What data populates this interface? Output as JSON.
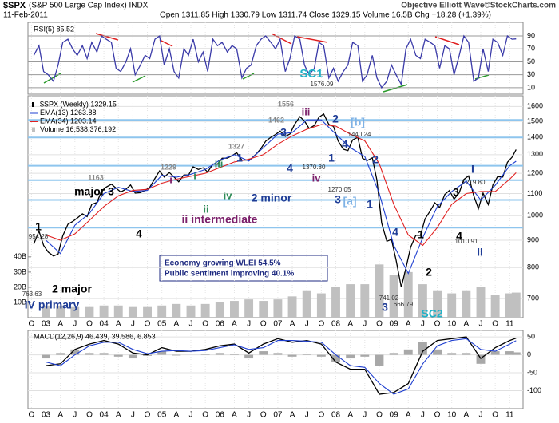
{
  "chart_data": [
    {
      "type": "line",
      "title": "$SPX",
      "subtitle": "(S&P 500 Large Cap Index) INDX",
      "date": "11-Feb-2011",
      "quote": "Open 1311.85 High 1330.79 Low 1311.74 Close 1329.15 Volume 16.5B Chg +18.28 (+1.39%)",
      "credit": "Objective Elliott Wave©StockCharts.com",
      "xlim": [
        2002.69,
        2011.23
      ],
      "xticks": [
        {
          "value": 2002.75,
          "label": "O"
        },
        {
          "value": 2003,
          "label": "03"
        },
        {
          "value": 2003.25,
          "label": "A"
        },
        {
          "value": 2003.5,
          "label": "J"
        },
        {
          "value": 2003.75,
          "label": "O"
        },
        {
          "value": 2004,
          "label": "04"
        },
        {
          "value": 2004.25,
          "label": "A"
        },
        {
          "value": 2004.5,
          "label": "J"
        },
        {
          "value": 2004.75,
          "label": "O"
        },
        {
          "value": 2005,
          "label": "05"
        },
        {
          "value": 2005.25,
          "label": "A"
        },
        {
          "value": 2005.5,
          "label": "J"
        },
        {
          "value": 2005.75,
          "label": "O"
        },
        {
          "value": 2006,
          "label": "06"
        },
        {
          "value": 2006.25,
          "label": "A"
        },
        {
          "value": 2006.5,
          "label": "J"
        },
        {
          "value": 2006.75,
          "label": "O"
        },
        {
          "value": 2007,
          "label": "07"
        },
        {
          "value": 2007.25,
          "label": "A"
        },
        {
          "value": 2007.5,
          "label": "J"
        },
        {
          "value": 2007.75,
          "label": "O"
        },
        {
          "value": 2008,
          "label": "08"
        },
        {
          "value": 2008.25,
          "label": "A"
        },
        {
          "value": 2008.5,
          "label": "J"
        },
        {
          "value": 2008.75,
          "label": "O"
        },
        {
          "value": 2009,
          "label": "09"
        },
        {
          "value": 2009.25,
          "label": "A"
        },
        {
          "value": 2009.5,
          "label": "J"
        },
        {
          "value": 2009.75,
          "label": "O"
        },
        {
          "value": 2010,
          "label": "10"
        },
        {
          "value": 2010.25,
          "label": "A"
        },
        {
          "value": 2010.5,
          "label": "J"
        },
        {
          "value": 2010.75,
          "label": "O"
        },
        {
          "value": 2011,
          "label": "11"
        }
      ],
      "log_y": true,
      "ylim": [
        645,
        1675
      ],
      "yticks": [
        1600,
        1500,
        1400,
        1300,
        1200,
        1100,
        1000,
        900,
        800,
        700
      ],
      "grid": true,
      "y2lim": [
        0,
        146
      ],
      "y2ticks": [
        {
          "value": 40,
          "label": "40B"
        },
        {
          "value": 30,
          "label": "30B"
        },
        {
          "value": 20,
          "label": "20B"
        },
        {
          "value": 10,
          "label": "10B"
        }
      ],
      "levels": [
        1510,
        1400,
        1240,
        1165,
        1070,
        950
      ],
      "level_color": "#8ec5ee",
      "series": [
        {
          "name": "$SPX (Weekly) 1329.15",
          "color": "#000000",
          "x": [
            2002.79,
            2002.88,
            2002.96,
            2003.04,
            2003.13,
            2003.21,
            2003.29,
            2003.38,
            2003.46,
            2003.54,
            2003.63,
            2003.71,
            2003.79,
            2003.88,
            2003.96,
            2004.04,
            2004.13,
            2004.21,
            2004.29,
            2004.38,
            2004.46,
            2004.54,
            2004.63,
            2004.71,
            2004.79,
            2004.88,
            2004.96,
            2005.04,
            2005.13,
            2005.21,
            2005.29,
            2005.38,
            2005.46,
            2005.54,
            2005.63,
            2005.71,
            2005.79,
            2005.88,
            2005.96,
            2006.04,
            2006.13,
            2006.21,
            2006.29,
            2006.38,
            2006.46,
            2006.54,
            2006.63,
            2006.71,
            2006.79,
            2006.88,
            2006.96,
            2007.04,
            2007.13,
            2007.21,
            2007.29,
            2007.38,
            2007.46,
            2007.54,
            2007.63,
            2007.71,
            2007.79,
            2007.88,
            2007.96,
            2008.04,
            2008.13,
            2008.21,
            2008.29,
            2008.38,
            2008.46,
            2008.54,
            2008.63,
            2008.71,
            2008.79,
            2008.88,
            2008.96,
            2009.04,
            2009.13,
            2009.21,
            2009.29,
            2009.38,
            2009.46,
            2009.54,
            2009.63,
            2009.71,
            2009.79,
            2009.88,
            2009.96,
            2010.04,
            2010.13,
            2010.21,
            2010.29,
            2010.38,
            2010.46,
            2010.54,
            2010.63,
            2010.71,
            2010.79,
            2010.88,
            2010.96,
            2011.04,
            2011.11
          ],
          "values": [
            885,
            936,
            880,
            855,
            841,
            848,
            917,
            964,
            975,
            990,
            1008,
            996,
            1050,
            1058,
            1112,
            1131,
            1145,
            1126,
            1107,
            1121,
            1141,
            1102,
            1104,
            1115,
            1130,
            1174,
            1212,
            1181,
            1204,
            1181,
            1157,
            1192,
            1191,
            1234,
            1220,
            1229,
            1207,
            1249,
            1248,
            1280,
            1281,
            1295,
            1311,
            1270,
            1270,
            1277,
            1304,
            1336,
            1378,
            1401,
            1418,
            1438,
            1407,
            1421,
            1482,
            1531,
            1503,
            1455,
            1474,
            1527,
            1549,
            1481,
            1468,
            1379,
            1331,
            1323,
            1386,
            1400,
            1280,
            1267,
            1283,
            1165,
            969,
            896,
            903,
            826,
            735,
            798,
            873,
            919,
            919,
            987,
            1021,
            1057,
            1036,
            1096,
            1115,
            1074,
            1104,
            1169,
            1187,
            1089,
            1031,
            1102,
            1049,
            1141,
            1183,
            1181,
            1258,
            1286,
            1329.15
          ]
        },
        {
          "name": "EMA(13) 1263.88",
          "color": "#1f3fd0",
          "x": [
            2003,
            2003.25,
            2003.5,
            2003.75,
            2004,
            2004.25,
            2004.5,
            2004.75,
            2005,
            2005.25,
            2005.5,
            2005.75,
            2006,
            2006.25,
            2006.5,
            2006.75,
            2007,
            2007.25,
            2007.5,
            2007.75,
            2008,
            2008.25,
            2008.5,
            2008.75,
            2009,
            2009.25,
            2009.5,
            2009.75,
            2010,
            2010.25,
            2010.5,
            2010.75,
            2011,
            2011.11
          ],
          "values": [
            900,
            850,
            960,
            1010,
            1100,
            1130,
            1110,
            1115,
            1190,
            1180,
            1195,
            1220,
            1270,
            1300,
            1265,
            1340,
            1420,
            1430,
            1510,
            1510,
            1420,
            1340,
            1290,
            1100,
            880,
            780,
            910,
            1040,
            1110,
            1160,
            1070,
            1140,
            1240,
            1263.88
          ]
        },
        {
          "name": "EMA(34) 1203.14",
          "color": "#e02020",
          "values": [
            920,
            900,
            925,
            980,
            1040,
            1090,
            1115,
            1120,
            1150,
            1170,
            1185,
            1200,
            1230,
            1260,
            1275,
            1300,
            1360,
            1410,
            1450,
            1480,
            1470,
            1420,
            1380,
            1250,
            1050,
            920,
            880,
            950,
            1050,
            1100,
            1110,
            1110,
            1170,
            1203.14
          ]
        },
        {
          "name": "Volume 16,538,376,192",
          "color": "#c0c0c0",
          "type": "bar",
          "axis": "y2",
          "values": [
            8,
            8,
            7,
            7,
            8,
            8,
            7,
            7,
            8,
            9,
            8,
            9,
            10,
            11,
            12,
            11,
            12,
            14,
            18,
            16,
            20,
            22,
            22,
            35,
            28,
            30,
            22,
            18,
            16,
            18,
            20,
            15,
            16,
            16.5
          ]
        }
      ],
      "annotations": [
        "SC1",
        "1576.09",
        "1556",
        "iii",
        "1462",
        "2",
        "[b]",
        "3",
        "1440.24",
        "4",
        "1327",
        "1",
        "iii",
        "1",
        "2",
        "1229",
        "1370.80",
        "4",
        "i",
        "1163",
        "i",
        "iv",
        "1219.80",
        "I",
        "1270.05",
        "major 3",
        "3",
        "iv",
        "2 minor",
        "3",
        "[a]",
        "1",
        "ii",
        "ii intermediate",
        "1",
        "4",
        "4",
        "1",
        "4",
        "954.28",
        "1010.91",
        "II",
        "2",
        "2 major",
        "763.63",
        "741.02",
        "666.79",
        "IV primary",
        "3",
        "SC2"
      ],
      "notes": [
        "Economy growing WLEI 54.5%",
        "Public sentiment improving 40.1%"
      ]
    },
    {
      "type": "line",
      "ylim": [
        0,
        111
      ],
      "yticks": [
        90,
        70,
        50,
        30,
        10
      ],
      "grid": true,
      "series": [
        {
          "name": "RSI(5) 85.52",
          "color": "#3a3aa8",
          "values": [
            60,
            75,
            35,
            30,
            20,
            45,
            80,
            85,
            70,
            60,
            75,
            55,
            80,
            65,
            90,
            85,
            80,
            40,
            35,
            50,
            70,
            30,
            45,
            60,
            55,
            85,
            90,
            45,
            70,
            35,
            25,
            70,
            60,
            85,
            50,
            65,
            35,
            85,
            75,
            80,
            65,
            75,
            70,
            25,
            40,
            45,
            75,
            85,
            90,
            80,
            70,
            85,
            35,
            55,
            90,
            85,
            45,
            30,
            40,
            80,
            75,
            25,
            40,
            20,
            35,
            45,
            80,
            75,
            20,
            30,
            60,
            25,
            10,
            20,
            45,
            30,
            15,
            70,
            85,
            60,
            55,
            85,
            80,
            75,
            40,
            75,
            70,
            30,
            60,
            90,
            80,
            20,
            25,
            70,
            35,
            85,
            80,
            60,
            90,
            85,
            85.52
          ]
        }
      ]
    },
    {
      "type": "line",
      "label": "MACD(12,26,9) 46.439, 39.586, 6.853",
      "ylim": [
        -150,
        68
      ],
      "yticks": [
        50,
        0,
        -50,
        -100
      ],
      "grid": true,
      "series": [
        {
          "color": "#000000",
          "values": [
            -30,
            -25,
            15,
            30,
            40,
            30,
            5,
            0,
            20,
            10,
            10,
            15,
            25,
            30,
            5,
            30,
            45,
            35,
            40,
            30,
            -20,
            -40,
            -40,
            -110,
            -105,
            -80,
            10,
            40,
            45,
            50,
            -10,
            20,
            40,
            46.439
          ]
        },
        {
          "color": "#2040d0",
          "values": [
            -20,
            -30,
            0,
            25,
            35,
            35,
            15,
            3,
            10,
            12,
            10,
            12,
            20,
            28,
            15,
            20,
            40,
            40,
            38,
            35,
            0,
            -30,
            -35,
            -80,
            -110,
            -95,
            -25,
            25,
            40,
            45,
            15,
            10,
            30,
            39.586
          ]
        },
        {
          "color": "#a8a8a8",
          "type": "bar",
          "values": [
            -10,
            5,
            15,
            5,
            5,
            -5,
            -10,
            -3,
            10,
            -2,
            0,
            3,
            5,
            2,
            -10,
            10,
            5,
            -5,
            2,
            -5,
            -20,
            -10,
            -5,
            -30,
            5,
            15,
            35,
            15,
            5,
            5,
            -25,
            10,
            10,
            6.853
          ]
        }
      ]
    }
  ]
}
